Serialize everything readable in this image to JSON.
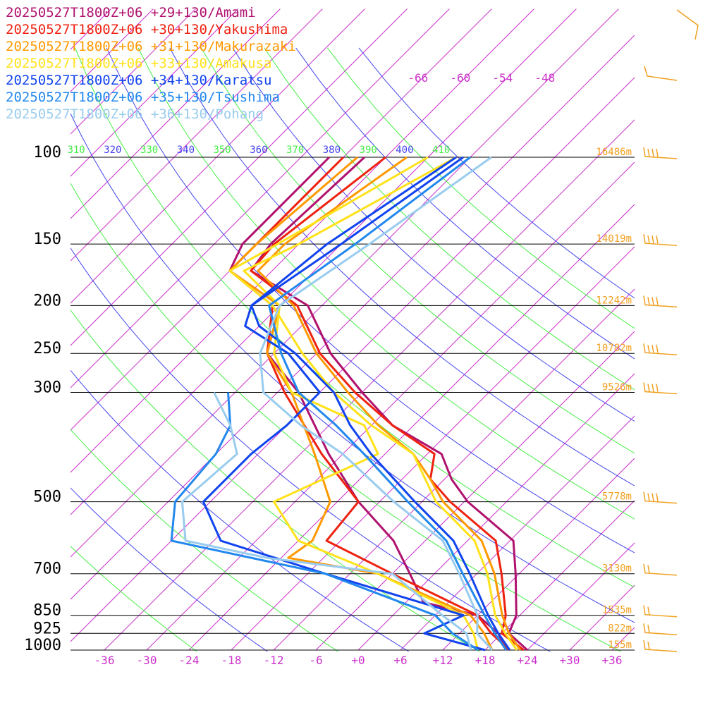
{
  "chart_data": {
    "type": "line",
    "title": "",
    "xlabel": "",
    "ylabel": "",
    "y_scale": "log-pressure",
    "pressure_levels": [
      100,
      150,
      200,
      250,
      300,
      500,
      700,
      850,
      925,
      1000
    ],
    "pressure_labels": [
      "100",
      "150",
      "200",
      "250",
      "300",
      "500",
      "700",
      "850",
      "925",
      "1000"
    ],
    "height_labels": [
      "16486m",
      "14019m",
      "12242m",
      "10782m",
      "9526m",
      "5778m",
      "3130m",
      "1535m",
      "822m",
      "155m"
    ],
    "temperature_ticks": [
      "-36",
      "-30",
      "-24",
      "-18",
      "-12",
      "-6",
      "+0",
      "+6",
      "+12",
      "+18",
      "+24",
      "+30",
      "+36"
    ],
    "top_temperature_labels": [
      "-66",
      "-60",
      "-54",
      "-48"
    ],
    "theta_labels": [
      "310",
      "320",
      "330",
      "340",
      "350",
      "360",
      "370",
      "380",
      "390",
      "400",
      "410"
    ],
    "colors": {
      "isotherm": "#cc33cc",
      "dry_adiabat_a": "#4444ee",
      "dry_adiabat_b": "#44ee44",
      "isobar": "#000000",
      "wind_barb": "#f0a020"
    },
    "series": [
      {
        "name": "20250527T1800Z+06 +29+130/Amami",
        "color": "#b0126e",
        "temperature": [
          [
            1000,
            24.0
          ],
          [
            925,
            19.0
          ],
          [
            850,
            17.5
          ],
          [
            700,
            11.5
          ],
          [
            600,
            6.5
          ],
          [
            500,
            -5.5
          ],
          [
            450,
            -11.0
          ],
          [
            400,
            -16.0
          ],
          [
            350,
            -27.0
          ],
          [
            300,
            -36.0
          ],
          [
            250,
            -46.0
          ],
          [
            200,
            -56.0
          ],
          [
            170,
            -69.0
          ],
          [
            150,
            -70.0
          ],
          [
            100,
            -69.0
          ]
        ],
        "dewpoint": [
          [
            1000,
            21.0
          ],
          [
            925,
            17.5
          ],
          [
            850,
            12.0
          ],
          [
            800,
            2.5
          ],
          [
            700,
            -3.5
          ],
          [
            600,
            -10.5
          ],
          [
            500,
            -21.0
          ],
          [
            400,
            -32.0
          ],
          [
            300,
            -45.0
          ],
          [
            250,
            -55.0
          ],
          [
            200,
            -60.0
          ],
          [
            170,
            -72.0
          ],
          [
            150,
            -74.0
          ],
          [
            100,
            -74.0
          ]
        ]
      },
      {
        "name": "20250527T1800Z+06 +30+130/Yakushima",
        "color": "#ee2211",
        "temperature": [
          [
            1000,
            23.5
          ],
          [
            925,
            18.0
          ],
          [
            850,
            16.0
          ],
          [
            700,
            9.5
          ],
          [
            600,
            4.0
          ],
          [
            500,
            -8.0
          ],
          [
            450,
            -14.0
          ],
          [
            400,
            -17.0
          ],
          [
            350,
            -27.0
          ],
          [
            300,
            -37.0
          ],
          [
            250,
            -47.5
          ],
          [
            200,
            -57.5
          ],
          [
            170,
            -69.0
          ],
          [
            150,
            -69.5
          ],
          [
            100,
            -66.0
          ]
        ],
        "dewpoint": [
          [
            1000,
            21.5
          ],
          [
            925,
            16.5
          ],
          [
            850,
            12.0
          ],
          [
            700,
            -6.0
          ],
          [
            600,
            -20.0
          ],
          [
            500,
            -21.0
          ],
          [
            400,
            -33.0
          ],
          [
            300,
            -47.0
          ],
          [
            250,
            -55.0
          ],
          [
            200,
            -61.0
          ],
          [
            170,
            -72.0
          ],
          [
            150,
            -72.0
          ],
          [
            100,
            -72.0
          ]
        ]
      },
      {
        "name": "20250527T1800Z+06 +31+130/Makurazaki",
        "color": "#ff9900",
        "temperature": [
          [
            1000,
            23.0
          ],
          [
            925,
            19.0
          ],
          [
            850,
            15.5
          ],
          [
            700,
            8.5
          ],
          [
            600,
            2.0
          ],
          [
            500,
            -9.0
          ],
          [
            450,
            -14.0
          ],
          [
            400,
            -20.0
          ],
          [
            350,
            -29.0
          ],
          [
            300,
            -38.0
          ],
          [
            250,
            -48.0
          ],
          [
            200,
            -58.0
          ],
          [
            170,
            -68.0
          ],
          [
            150,
            -68.0
          ],
          [
            100,
            -63.0
          ]
        ],
        "dewpoint": [
          [
            1000,
            19.0
          ],
          [
            925,
            15.5
          ],
          [
            850,
            11.0
          ],
          [
            700,
            -8.0
          ],
          [
            650,
            -23.0
          ],
          [
            600,
            -22.0
          ],
          [
            500,
            -25.0
          ],
          [
            400,
            -34.0
          ],
          [
            300,
            -46.0
          ],
          [
            250,
            -55.0
          ],
          [
            200,
            -60.0
          ],
          [
            170,
            -72.0
          ],
          [
            150,
            -72.0
          ],
          [
            100,
            -70.0
          ]
        ]
      },
      {
        "name": "20250527T1800Z+06 +33+130/Amakusa",
        "color": "#ffe21a",
        "temperature": [
          [
            1000,
            22.5
          ],
          [
            925,
            18.5
          ],
          [
            850,
            14.5
          ],
          [
            700,
            7.5
          ],
          [
            600,
            1.0
          ],
          [
            500,
            -10.0
          ],
          [
            400,
            -20.0
          ],
          [
            350,
            -30.0
          ],
          [
            300,
            -40.0
          ],
          [
            250,
            -50.0
          ],
          [
            200,
            -61.0
          ],
          [
            170,
            -72.0
          ],
          [
            150,
            -69.0
          ],
          [
            100,
            -60.0
          ]
        ],
        "dewpoint": [
          [
            1000,
            17.0
          ],
          [
            925,
            14.0
          ],
          [
            850,
            10.0
          ],
          [
            700,
            -8.0
          ],
          [
            600,
            -24.0
          ],
          [
            500,
            -33.0
          ],
          [
            400,
            -25.0
          ],
          [
            350,
            -31.0
          ],
          [
            300,
            -46.0
          ],
          [
            250,
            -54.0
          ],
          [
            200,
            -60.0
          ],
          [
            170,
            -70.0
          ],
          [
            150,
            -66.0
          ],
          [
            100,
            -56.0
          ]
        ]
      },
      {
        "name": "20250527T1800Z+06 +34+130/Karatsu",
        "color": "#1144ee",
        "temperature": [
          [
            1000,
            21.5
          ],
          [
            925,
            17.5
          ],
          [
            850,
            13.5
          ],
          [
            700,
            5.0
          ],
          [
            600,
            -2.0
          ],
          [
            500,
            -13.0
          ],
          [
            400,
            -26.0
          ],
          [
            350,
            -33.0
          ],
          [
            300,
            -40.0
          ],
          [
            250,
            -51.0
          ],
          [
            220,
            -60.0
          ],
          [
            200,
            -64.0
          ],
          [
            150,
            -62.0
          ],
          [
            100,
            -56.0
          ]
        ],
        "dewpoint": [
          [
            1000,
            18.0
          ],
          [
            925,
            7.0
          ],
          [
            850,
            10.0
          ],
          [
            700,
            -15.5
          ],
          [
            600,
            -35.0
          ],
          [
            500,
            -43.0
          ],
          [
            400,
            -43.0
          ],
          [
            350,
            -42.0
          ],
          [
            300,
            -42.0
          ],
          [
            250,
            -52.0
          ],
          [
            220,
            -62.0
          ],
          [
            200,
            -64.0
          ],
          [
            150,
            -60.0
          ],
          [
            100,
            -55.0
          ]
        ]
      },
      {
        "name": "20250527T1800Z+06 +35+130/Tsushima",
        "color": "#2288ee",
        "temperature": [
          [
            1000,
            21.0
          ],
          [
            925,
            17.0
          ],
          [
            850,
            13.0
          ],
          [
            700,
            4.0
          ],
          [
            600,
            -3.0
          ],
          [
            500,
            -14.0
          ],
          [
            400,
            -27.0
          ],
          [
            350,
            -35.0
          ],
          [
            300,
            -45.0
          ],
          [
            250,
            -53.0
          ],
          [
            200,
            -61.5
          ],
          [
            150,
            -58.0
          ],
          [
            100,
            -54.0
          ]
        ],
        "dewpoint": [
          [
            1000,
            17.0
          ],
          [
            925,
            11.0
          ],
          [
            850,
            6.0
          ],
          [
            700,
            -15.5
          ],
          [
            600,
            -42.0
          ],
          [
            500,
            -47.0
          ],
          [
            400,
            -48.0
          ],
          [
            350,
            -50.0
          ],
          [
            300,
            -55.0
          ]
        ]
      },
      {
        "name": "20250527T1800Z+06 +36+130/Pohang",
        "color": "#99ccee",
        "temperature": [
          [
            1000,
            19.0
          ],
          [
            925,
            14.5
          ],
          [
            850,
            12.0
          ],
          [
            700,
            3.5
          ],
          [
            600,
            -3.5
          ],
          [
            500,
            -16.0
          ],
          [
            400,
            -30.0
          ],
          [
            350,
            -40.0
          ],
          [
            300,
            -50.0
          ],
          [
            250,
            -56.0
          ],
          [
            200,
            -60.0
          ],
          [
            150,
            -56.0
          ],
          [
            100,
            -51.0
          ]
        ],
        "dewpoint": [
          [
            1000,
            16.0
          ],
          [
            925,
            13.0
          ],
          [
            850,
            7.0
          ],
          [
            700,
            -6.0
          ],
          [
            650,
            -26.0
          ],
          [
            600,
            -40.0
          ],
          [
            500,
            -46.0
          ],
          [
            400,
            -45.0
          ],
          [
            350,
            -50.0
          ],
          [
            300,
            -57.0
          ]
        ]
      }
    ]
  }
}
